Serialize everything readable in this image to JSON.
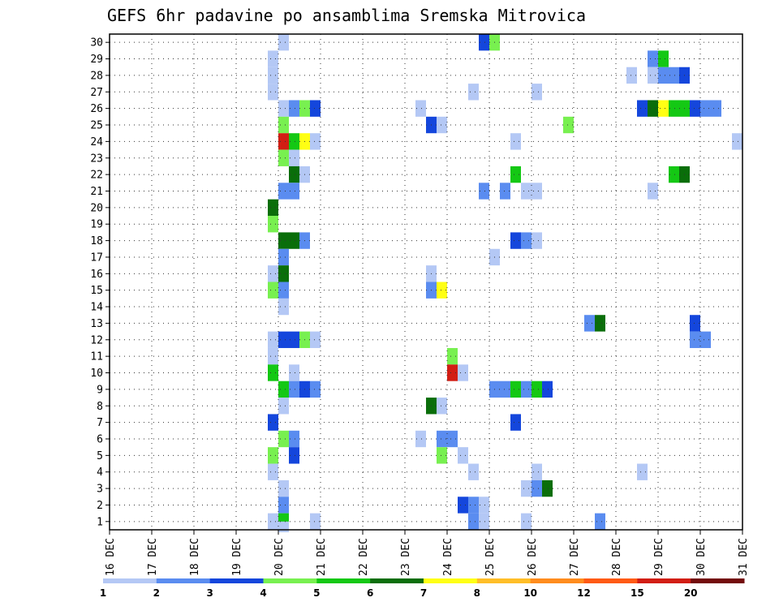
{
  "chart_data": {
    "type": "heatmap",
    "title": "GEFS 6hr padavine po ansamblima Sremska Mitrovica",
    "x_tick_labels": [
      "16 DEC",
      "17 DEC",
      "18 DEC",
      "19 DEC",
      "20 DEC",
      "21 DEC",
      "22 DEC",
      "23 DEC",
      "24 DEC",
      "25 DEC",
      "26 DEC",
      "27 DEC",
      "28 DEC",
      "29 DEC",
      "30 DEC",
      "31 DEC"
    ],
    "y_tick_labels": [
      "1",
      "2",
      "3",
      "4",
      "5",
      "6",
      "7",
      "8",
      "9",
      "10",
      "11",
      "12",
      "13",
      "14",
      "15",
      "16",
      "17",
      "18",
      "19",
      "20",
      "21",
      "22",
      "23",
      "24",
      "25",
      "26",
      "27",
      "28",
      "29",
      "30"
    ],
    "xlim": [
      0,
      15
    ],
    "ylim": [
      0.5,
      30.5
    ],
    "grid": true,
    "colorbar": {
      "labels": [
        "1",
        "2",
        "3",
        "4",
        "5",
        "6",
        "7",
        "8",
        "10",
        "12",
        "15",
        "20"
      ],
      "colors": [
        "#b4c8f5",
        "#5a8cf0",
        "#1446dc",
        "#78f050",
        "#14c814",
        "#0a6e0a",
        "#ffff14",
        "#ffbe28",
        "#ff8c1e",
        "#ff5a14",
        "#d21e14",
        "#730a0a"
      ]
    },
    "cells": [
      {
        "day": 4.0,
        "m": 30,
        "c": 1
      },
      {
        "day": 8.75,
        "m": 30,
        "c": 3
      },
      {
        "day": 9.0,
        "m": 30,
        "c": 4
      },
      {
        "day": 3.75,
        "m": 29,
        "c": 1
      },
      {
        "day": 12.75,
        "m": 29,
        "c": 2
      },
      {
        "day": 13.0,
        "m": 29,
        "c": 5
      },
      {
        "day": 3.75,
        "m": 28,
        "c": 1
      },
      {
        "day": 12.25,
        "m": 28,
        "c": 1
      },
      {
        "day": 12.75,
        "m": 28,
        "c": 1
      },
      {
        "day": 13.0,
        "m": 28,
        "c": 2
      },
      {
        "day": 13.25,
        "m": 28,
        "c": 2
      },
      {
        "day": 13.5,
        "m": 28,
        "c": 3
      },
      {
        "day": 3.75,
        "m": 27,
        "c": 1
      },
      {
        "day": 8.5,
        "m": 27,
        "c": 1
      },
      {
        "day": 10.0,
        "m": 27,
        "c": 1
      },
      {
        "day": 4.0,
        "m": 26,
        "c": 1
      },
      {
        "day": 4.25,
        "m": 26,
        "c": 2
      },
      {
        "day": 4.5,
        "m": 26,
        "c": 4
      },
      {
        "day": 4.75,
        "m": 26,
        "c": 3
      },
      {
        "day": 7.25,
        "m": 26,
        "c": 1
      },
      {
        "day": 12.5,
        "m": 26,
        "c": 3
      },
      {
        "day": 12.75,
        "m": 26,
        "c": 6
      },
      {
        "day": 13.0,
        "m": 26,
        "c": 7
      },
      {
        "day": 13.25,
        "m": 26,
        "c": 5
      },
      {
        "day": 13.5,
        "m": 26,
        "c": 5
      },
      {
        "day": 13.75,
        "m": 26,
        "c": 3
      },
      {
        "day": 14.0,
        "m": 26,
        "c": 2
      },
      {
        "day": 14.25,
        "m": 26,
        "c": 2
      },
      {
        "day": 4.0,
        "m": 25,
        "c": 4
      },
      {
        "day": 7.5,
        "m": 25,
        "c": 3
      },
      {
        "day": 7.75,
        "m": 25,
        "c": 1
      },
      {
        "day": 10.75,
        "m": 25,
        "c": 4
      },
      {
        "day": 4.0,
        "m": 24,
        "c": 11
      },
      {
        "day": 4.25,
        "m": 24,
        "c": 5
      },
      {
        "day": 4.5,
        "m": 24,
        "c": 7
      },
      {
        "day": 4.75,
        "m": 24,
        "c": 1
      },
      {
        "day": 9.5,
        "m": 24,
        "c": 1
      },
      {
        "day": 14.75,
        "m": 24,
        "c": 1
      },
      {
        "day": 4.0,
        "m": 23,
        "c": 4
      },
      {
        "day": 4.25,
        "m": 23,
        "c": 1
      },
      {
        "day": 4.25,
        "m": 22,
        "c": 6
      },
      {
        "day": 4.5,
        "m": 22,
        "c": 1
      },
      {
        "day": 9.5,
        "m": 22,
        "c": 5
      },
      {
        "day": 13.25,
        "m": 22,
        "c": 5
      },
      {
        "day": 13.5,
        "m": 22,
        "c": 6
      },
      {
        "day": 4.0,
        "m": 21,
        "c": 2
      },
      {
        "day": 4.25,
        "m": 21,
        "c": 2
      },
      {
        "day": 8.75,
        "m": 21,
        "c": 2
      },
      {
        "day": 9.25,
        "m": 21,
        "c": 2
      },
      {
        "day": 9.75,
        "m": 21,
        "c": 1
      },
      {
        "day": 10.0,
        "m": 21,
        "c": 1
      },
      {
        "day": 12.75,
        "m": 21,
        "c": 1
      },
      {
        "day": 3.75,
        "m": 20,
        "c": 6
      },
      {
        "day": 3.75,
        "m": 19,
        "c": 4
      },
      {
        "day": 4.0,
        "m": 18,
        "c": 6
      },
      {
        "day": 4.25,
        "m": 18,
        "c": 6
      },
      {
        "day": 4.5,
        "m": 18,
        "c": 2
      },
      {
        "day": 9.5,
        "m": 18,
        "c": 3
      },
      {
        "day": 9.75,
        "m": 18,
        "c": 2
      },
      {
        "day": 10.0,
        "m": 18,
        "c": 1
      },
      {
        "day": 4.0,
        "m": 17,
        "c": 2
      },
      {
        "day": 9.0,
        "m": 17,
        "c": 1
      },
      {
        "day": 3.75,
        "m": 16,
        "c": 1
      },
      {
        "day": 4.0,
        "m": 16,
        "c": 6
      },
      {
        "day": 7.5,
        "m": 16,
        "c": 1
      },
      {
        "day": 3.75,
        "m": 15,
        "c": 4
      },
      {
        "day": 4.0,
        "m": 15,
        "c": 2
      },
      {
        "day": 7.5,
        "m": 15,
        "c": 2
      },
      {
        "day": 7.75,
        "m": 15,
        "c": 7
      },
      {
        "day": 4.0,
        "m": 14,
        "c": 1
      },
      {
        "day": 11.25,
        "m": 13,
        "c": 2
      },
      {
        "day": 11.5,
        "m": 13,
        "c": 6
      },
      {
        "day": 13.75,
        "m": 13,
        "c": 3
      },
      {
        "day": 3.75,
        "m": 12,
        "c": 1
      },
      {
        "day": 4.0,
        "m": 12,
        "c": 3
      },
      {
        "day": 4.25,
        "m": 12,
        "c": 3
      },
      {
        "day": 4.5,
        "m": 12,
        "c": 4
      },
      {
        "day": 4.75,
        "m": 12,
        "c": 1
      },
      {
        "day": 13.75,
        "m": 12,
        "c": 2
      },
      {
        "day": 14.0,
        "m": 12,
        "c": 2
      },
      {
        "day": 3.75,
        "m": 11,
        "c": 1
      },
      {
        "day": 8.0,
        "m": 11,
        "c": 4
      },
      {
        "day": 3.75,
        "m": 10,
        "c": 5
      },
      {
        "day": 4.25,
        "m": 10,
        "c": 1
      },
      {
        "day": 8.0,
        "m": 10,
        "c": 11
      },
      {
        "day": 8.25,
        "m": 10,
        "c": 1
      },
      {
        "day": 4.0,
        "m": 9,
        "c": 5
      },
      {
        "day": 4.25,
        "m": 9,
        "c": 2
      },
      {
        "day": 4.5,
        "m": 9,
        "c": 3
      },
      {
        "day": 4.75,
        "m": 9,
        "c": 2
      },
      {
        "day": 9.0,
        "m": 9,
        "c": 2
      },
      {
        "day": 9.25,
        "m": 9,
        "c": 2
      },
      {
        "day": 9.5,
        "m": 9,
        "c": 5
      },
      {
        "day": 9.75,
        "m": 9,
        "c": 2
      },
      {
        "day": 10.0,
        "m": 9,
        "c": 5
      },
      {
        "day": 10.25,
        "m": 9,
        "c": 3
      },
      {
        "day": 4.0,
        "m": 8,
        "c": 1
      },
      {
        "day": 7.5,
        "m": 8,
        "c": 6
      },
      {
        "day": 7.75,
        "m": 8,
        "c": 1
      },
      {
        "day": 3.75,
        "m": 7,
        "c": 3
      },
      {
        "day": 9.5,
        "m": 7,
        "c": 3
      },
      {
        "day": 4.0,
        "m": 6,
        "c": 4
      },
      {
        "day": 4.25,
        "m": 6,
        "c": 2
      },
      {
        "day": 7.25,
        "m": 6,
        "c": 1
      },
      {
        "day": 7.75,
        "m": 6,
        "c": 2
      },
      {
        "day": 8.0,
        "m": 6,
        "c": 2
      },
      {
        "day": 3.75,
        "m": 5,
        "c": 4
      },
      {
        "day": 4.25,
        "m": 5,
        "c": 3
      },
      {
        "day": 7.75,
        "m": 5,
        "c": 4
      },
      {
        "day": 8.25,
        "m": 5,
        "c": 1
      },
      {
        "day": 3.75,
        "m": 4,
        "c": 1
      },
      {
        "day": 8.5,
        "m": 4,
        "c": 1
      },
      {
        "day": 10.0,
        "m": 4,
        "c": 1
      },
      {
        "day": 12.5,
        "m": 4,
        "c": 1
      },
      {
        "day": 4.0,
        "m": 3,
        "c": 1
      },
      {
        "day": 9.75,
        "m": 3,
        "c": 1
      },
      {
        "day": 10.0,
        "m": 3,
        "c": 2
      },
      {
        "day": 10.25,
        "m": 3,
        "c": 6
      },
      {
        "day": 4.0,
        "m": 2,
        "c": 2
      },
      {
        "day": 8.25,
        "m": 2,
        "c": 3
      },
      {
        "day": 8.5,
        "m": 2,
        "c": 2
      },
      {
        "day": 8.75,
        "m": 2,
        "c": 1
      },
      {
        "day": 3.75,
        "m": 1,
        "c": 1
      },
      {
        "day": 4.0,
        "m": 1,
        "c": 5
      },
      {
        "day": 4.75,
        "m": 1,
        "c": 1
      },
      {
        "day": 8.5,
        "m": 1,
        "c": 2
      },
      {
        "day": 8.75,
        "m": 1,
        "c": 1
      },
      {
        "day": 9.75,
        "m": 1,
        "c": 1
      },
      {
        "day": 11.5,
        "m": 1,
        "c": 2
      },
      {
        "day": 4.0,
        "m": 0.5,
        "c": 1
      }
    ]
  }
}
